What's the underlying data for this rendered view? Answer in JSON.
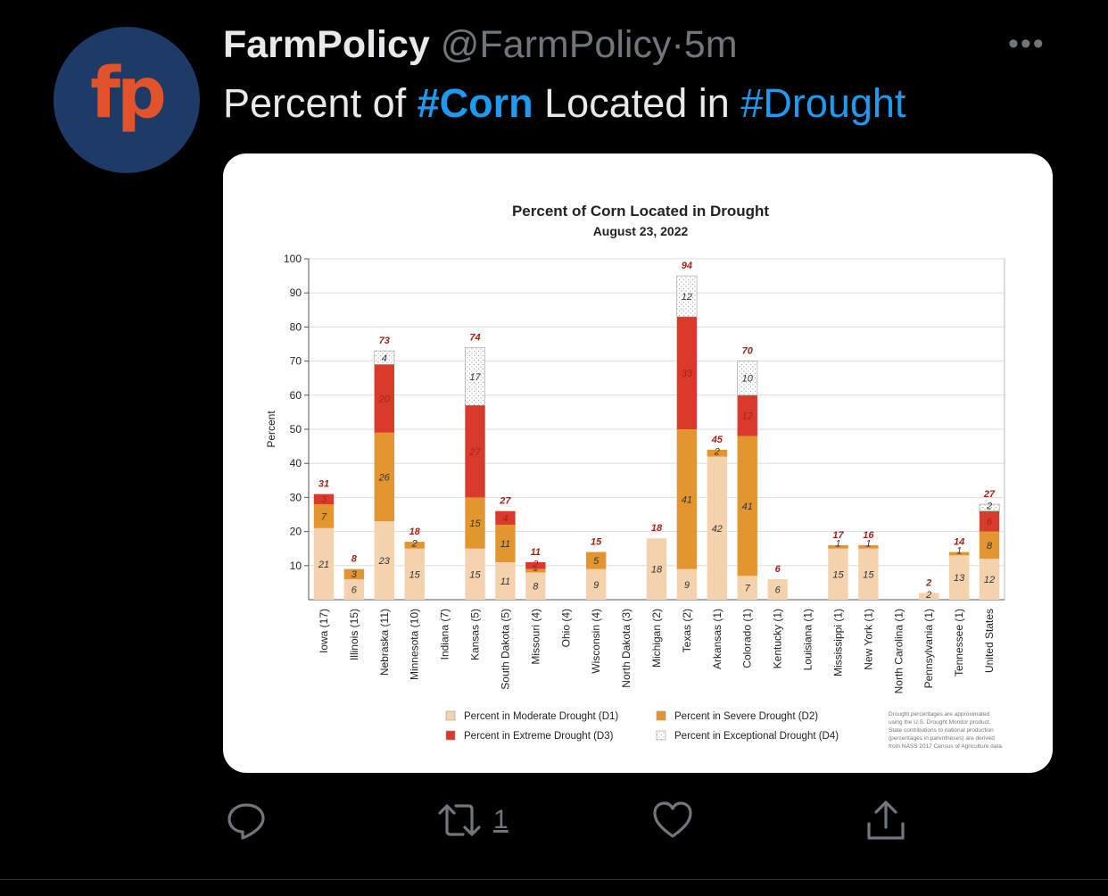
{
  "tweet": {
    "avatar_text": "fp",
    "name": "FarmPolicy",
    "handle": "@FarmPolicy",
    "separator": "·",
    "time": "5m",
    "more_icon": "ellipsis-icon",
    "text_prefix": "Percent of ",
    "hashtag1": "#Corn",
    "text_middle": " Located in ",
    "hashtag2": "#Drought",
    "retweet_count": "1"
  },
  "colors": {
    "background": "#000000",
    "hashtag": "#1d9bf0",
    "muted": "#71767b",
    "avatar_bg": "#1e3a66",
    "avatar_text": "#e2532b",
    "d1": "#f4d2ae",
    "d2": "#e3952f",
    "d3": "#d93a2b",
    "d4": "#ffffff"
  },
  "chart_data": {
    "type": "bar",
    "stacked": true,
    "title": "Percent of Corn Located in Drought",
    "subtitle": "August 23, 2022",
    "ylabel": "Percent",
    "ylim": [
      0,
      100
    ],
    "yticks": [
      10,
      20,
      30,
      40,
      50,
      60,
      70,
      80,
      90,
      100
    ],
    "categories": [
      "Iowa (17)",
      "Illinois (15)",
      "Nebraska (11)",
      "Minnesota (10)",
      "Indiana (7)",
      "Kansas (5)",
      "South Dakota (5)",
      "Missouri (4)",
      "Ohio (4)",
      "Wisconsin (4)",
      "North Dakota (3)",
      "Michigan (2)",
      "Texas (2)",
      "Arkansas (1)",
      "Colorado (1)",
      "Kentucky (1)",
      "Louisiana (1)",
      "Mississippi (1)",
      "New York (1)",
      "North Carolina (1)",
      "Pennsylvania (1)",
      "Tennessee (1)",
      "United States"
    ],
    "series": [
      {
        "name": "Percent in Moderate Drought (D1)",
        "values": [
          21,
          6,
          23,
          15,
          0,
          15,
          11,
          8,
          0,
          9,
          0,
          18,
          9,
          42,
          7,
          6,
          0,
          15,
          15,
          0,
          2,
          13,
          12
        ]
      },
      {
        "name": "Percent in Severe Drought (D2)",
        "values": [
          7,
          3,
          26,
          2,
          0,
          15,
          11,
          1,
          0,
          5,
          0,
          0,
          41,
          2,
          41,
          0,
          0,
          1,
          1,
          0,
          0,
          1,
          8
        ]
      },
      {
        "name": "Percent in Extreme Drought (D3)",
        "values": [
          3,
          0,
          20,
          0,
          0,
          27,
          4,
          2,
          0,
          0,
          0,
          0,
          33,
          0,
          12,
          0,
          0,
          0,
          0,
          0,
          0,
          0,
          6
        ]
      },
      {
        "name": "Percent in Exceptional Drought (D4)",
        "values": [
          0,
          0,
          4,
          0,
          0,
          17,
          0,
          0,
          0,
          0,
          0,
          0,
          12,
          0,
          10,
          0,
          0,
          0,
          0,
          0,
          0,
          0,
          2
        ]
      }
    ],
    "totals": [
      31,
      8,
      73,
      18,
      null,
      74,
      27,
      11,
      null,
      15,
      null,
      18,
      94,
      45,
      70,
      6,
      null,
      17,
      16,
      null,
      2,
      14,
      27
    ],
    "segment_labels": [
      [
        "21",
        "6",
        "23",
        "15",
        "",
        "15",
        "11",
        "8",
        "",
        "9",
        "",
        "18",
        "9",
        "42",
        "7",
        "6",
        "",
        "15",
        "15",
        "",
        "2",
        "13",
        "12"
      ],
      [
        "7",
        "3",
        "26",
        "2",
        "",
        "15",
        "11",
        "1",
        "",
        "5",
        "",
        "",
        "41",
        "2",
        "41",
        "",
        "",
        "1",
        "1",
        "",
        "",
        "1",
        "8"
      ],
      [
        "3",
        "",
        "20",
        "",
        "",
        "27",
        "4",
        "2",
        "",
        "",
        "",
        "",
        "33",
        "",
        "12",
        "",
        "",
        "",
        "",
        "",
        "",
        "",
        "6"
      ],
      [
        "",
        "",
        "4",
        "",
        "",
        "17",
        "",
        "",
        "",
        "",
        "",
        "",
        "12",
        "",
        "10",
        "",
        "",
        "",
        "",
        "",
        "",
        "",
        "2"
      ]
    ],
    "footnote": [
      "Drought percentages are approximated",
      "using the U.S. Drought Monitor product.",
      "State contributions to national production",
      "(percentages in parentheses) are derived",
      "from NASS 2017 Census of Agriculture data."
    ],
    "grid": true,
    "legend_position": "bottom"
  }
}
